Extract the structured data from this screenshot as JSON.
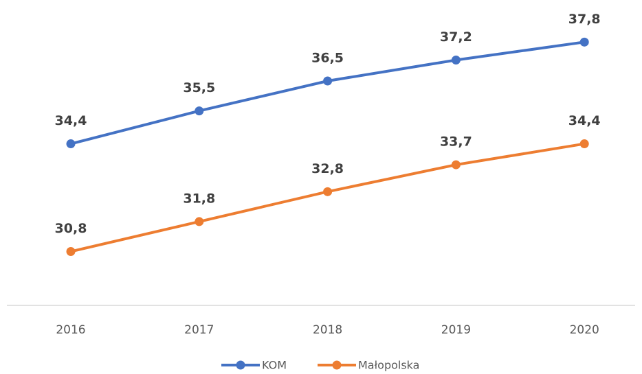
{
  "chart_data": {
    "type": "line",
    "categories": [
      "2016",
      "2017",
      "2018",
      "2019",
      "2020"
    ],
    "series": [
      {
        "name": "KOM",
        "color": "#4472c4",
        "values": [
          34.4,
          35.5,
          36.5,
          37.2,
          37.8
        ],
        "value_labels": [
          "34,4",
          "35,5",
          "36,5",
          "37,2",
          "37,8"
        ]
      },
      {
        "name": "Małopolska",
        "color": "#ed7d31",
        "values": [
          30.8,
          31.8,
          32.8,
          33.7,
          34.4
        ],
        "value_labels": [
          "30,8",
          "31,8",
          "32,8",
          "33,7",
          "34,4"
        ]
      }
    ],
    "ylim": [
      29,
      39
    ],
    "legend": "bottom"
  }
}
